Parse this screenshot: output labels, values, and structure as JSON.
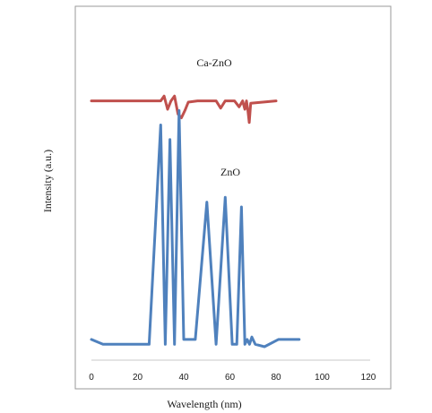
{
  "chart_data": {
    "type": "line",
    "xlabel": "Wavelength (nm)",
    "ylabel": "Intensity (a.u.)",
    "xlim": [
      0,
      120
    ],
    "x_ticks": [
      0,
      20,
      40,
      60,
      80,
      100,
      120
    ],
    "grid": false,
    "legend": "none",
    "series": [
      {
        "name": "Ca-ZnO",
        "color": "#c0504d",
        "points": [
          [
            0,
            102
          ],
          [
            30,
            102
          ],
          [
            31.5,
            104
          ],
          [
            33,
            98.5
          ],
          [
            34.5,
            102
          ],
          [
            36,
            104
          ],
          [
            37.5,
            96.5
          ],
          [
            39,
            95
          ],
          [
            40.5,
            98
          ],
          [
            42,
            101.5
          ],
          [
            46,
            102
          ],
          [
            54,
            102
          ],
          [
            56,
            99
          ],
          [
            58,
            102
          ],
          [
            62,
            102
          ],
          [
            64,
            99.5
          ],
          [
            65.5,
            102
          ],
          [
            66.5,
            98.5
          ],
          [
            67.2,
            102
          ],
          [
            67.8,
            98
          ],
          [
            68.4,
            93
          ],
          [
            69,
            101
          ],
          [
            80,
            102
          ]
        ]
      },
      {
        "name": "ZnO",
        "color": "#4f81bd",
        "points": [
          [
            0,
            3
          ],
          [
            5,
            1
          ],
          [
            25,
            1
          ],
          [
            30,
            92
          ],
          [
            32,
            1
          ],
          [
            34,
            86
          ],
          [
            36,
            1
          ],
          [
            38,
            98
          ],
          [
            40,
            3
          ],
          [
            45,
            3
          ],
          [
            50,
            60
          ],
          [
            54,
            1
          ],
          [
            58,
            62
          ],
          [
            61,
            1
          ],
          [
            63,
            1
          ],
          [
            65,
            58
          ],
          [
            66.5,
            1
          ],
          [
            67.5,
            3
          ],
          [
            68.5,
            1
          ],
          [
            69.5,
            4
          ],
          [
            71,
            1
          ],
          [
            75,
            0
          ],
          [
            81,
            3
          ],
          [
            90,
            3
          ]
        ]
      }
    ]
  }
}
